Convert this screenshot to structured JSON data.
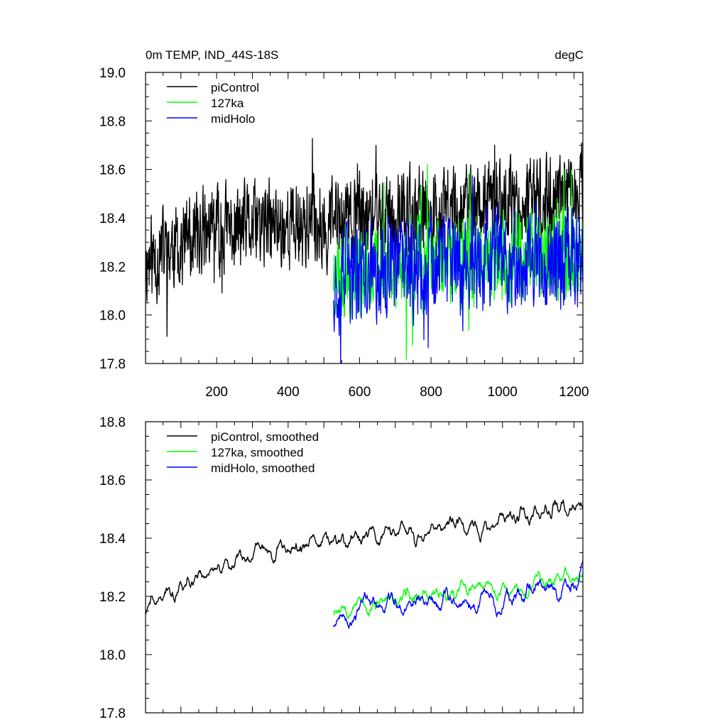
{
  "chart_data": [
    {
      "type": "line",
      "title": "0m TEMP, IND_44S-18S",
      "units": "degC",
      "xlabel": "",
      "ylabel": "",
      "xlim": [
        1,
        1225
      ],
      "ylim": [
        17.8,
        19.0
      ],
      "xticks": [
        200,
        400,
        600,
        800,
        1000,
        1200
      ],
      "yticks": [
        17.8,
        18.0,
        18.2,
        18.4,
        18.6,
        18.8,
        19.0
      ],
      "ytick_labels": [
        "17.8",
        "18.0",
        "18.2",
        "18.4",
        "18.6",
        "18.8",
        "19.0"
      ],
      "legend_position": "top-left",
      "series": [
        {
          "name": "piControl",
          "color": "#000000",
          "x_start": 1,
          "x_end": 1225,
          "mean": 18.38,
          "noise": 0.16,
          "trend": [
            18.22,
            18.34,
            18.36,
            18.38,
            18.4,
            18.42,
            18.44,
            18.46,
            18.5
          ],
          "seed": 11
        },
        {
          "name": "127ka",
          "color": "#00ff00",
          "x_start": 527,
          "x_end": 1225,
          "mean": 18.21,
          "noise": 0.16,
          "trend": [
            18.18,
            18.2,
            18.21,
            18.23,
            18.22,
            18.25,
            18.26
          ],
          "seed": 23
        },
        {
          "name": "midHolo",
          "color": "#0000ff",
          "x_start": 527,
          "x_end": 1225,
          "mean": 18.22,
          "noise": 0.18,
          "trend": [
            18.15,
            18.18,
            18.2,
            18.2,
            18.22,
            18.23,
            18.25
          ],
          "seed": 37
        }
      ]
    },
    {
      "type": "line",
      "title": "",
      "xlabel": "",
      "ylabel": "",
      "xlim": [
        1,
        1225
      ],
      "ylim": [
        17.8,
        18.8
      ],
      "xticks": [
        200,
        400,
        600,
        800,
        1000,
        1200
      ],
      "yticks": [
        17.8,
        18.0,
        18.2,
        18.4,
        18.6,
        18.8
      ],
      "ytick_labels": [
        "17.8",
        "18.0",
        "18.2",
        "18.4",
        "18.6",
        "18.8"
      ],
      "legend_position": "top-left",
      "series": [
        {
          "name": "piControl, smoothed",
          "color": "#000000",
          "x_start": 1,
          "x_end": 1225,
          "mean": 18.38,
          "noise": 0.08,
          "trend": [
            18.15,
            18.28,
            18.35,
            18.38,
            18.4,
            18.42,
            18.45,
            18.47,
            18.52
          ],
          "seed": 41
        },
        {
          "name": "127ka, smoothed",
          "color": "#00ff00",
          "x_start": 527,
          "x_end": 1225,
          "mean": 18.2,
          "noise": 0.08,
          "trend": [
            18.18,
            18.17,
            18.2,
            18.22,
            18.22,
            18.26,
            18.28
          ],
          "seed": 53
        },
        {
          "name": "midHolo, smoothed",
          "color": "#0000ff",
          "x_start": 527,
          "x_end": 1225,
          "mean": 18.2,
          "noise": 0.09,
          "trend": [
            18.14,
            18.17,
            18.17,
            18.2,
            18.19,
            18.22,
            18.24
          ],
          "seed": 67
        }
      ]
    }
  ]
}
